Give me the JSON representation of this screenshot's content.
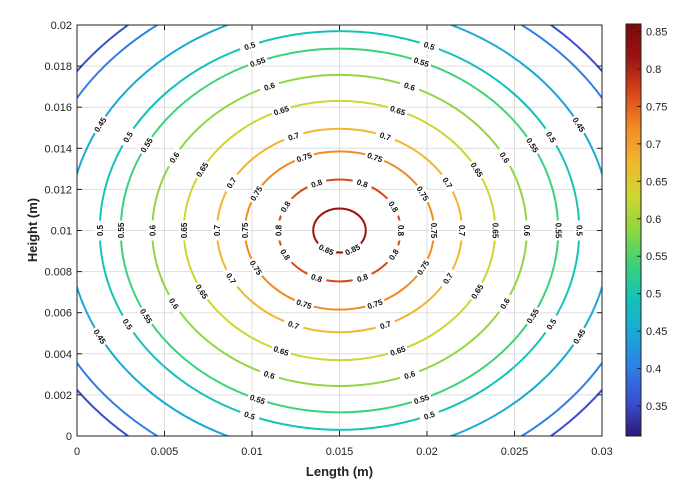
{
  "chart_data": {
    "type": "contour",
    "xlabel": "Length (m)",
    "ylabel": "Height (m)",
    "xlim": [
      0,
      0.03
    ],
    "ylim": [
      0,
      0.02
    ],
    "x_ticks": [
      "0",
      "0.005",
      "0.01",
      "0.015",
      "0.02",
      "0.025",
      "0.03"
    ],
    "y_ticks": [
      "0",
      "0.002",
      "0.004",
      "0.006",
      "0.008",
      "0.01",
      "0.012",
      "0.014",
      "0.016",
      "0.018",
      "0.02"
    ],
    "grid": true,
    "center": {
      "x": 0.015,
      "y": 0.01
    },
    "levels": [
      {
        "value": 0.35,
        "label": "0.35",
        "color": "#3a4fd0",
        "rx": 0.01855,
        "ry": 0.01318
      },
      {
        "value": 0.4,
        "label": "0.4",
        "color": "#2d7fe8",
        "rx": 0.01755,
        "ry": 0.01242
      },
      {
        "value": 0.45,
        "label": "0.45",
        "color": "#1aa9d6",
        "rx": 0.0155,
        "ry": 0.01098
      },
      {
        "value": 0.5,
        "label": "0.5",
        "color": "#14c2b8",
        "rx": 0.0137,
        "ry": 0.0097
      },
      {
        "value": 0.55,
        "label": "0.55",
        "color": "#3cd27a",
        "rx": 0.0125,
        "ry": 0.00885
      },
      {
        "value": 0.6,
        "label": "0.6",
        "color": "#8fd640",
        "rx": 0.0107,
        "ry": 0.00757
      },
      {
        "value": 0.65,
        "label": "0.65",
        "color": "#cfd630",
        "rx": 0.0089,
        "ry": 0.00631
      },
      {
        "value": 0.7,
        "label": "0.7",
        "color": "#f0b630",
        "rx": 0.007,
        "ry": 0.00495
      },
      {
        "value": 0.75,
        "label": "0.75",
        "color": "#f28a22",
        "rx": 0.0054,
        "ry": 0.00385
      },
      {
        "value": 0.8,
        "label": "0.8",
        "color": "#d9481a",
        "rx": 0.0035,
        "ry": 0.00248
      },
      {
        "value": 0.85,
        "label": "0.85",
        "color": "#9b1410",
        "rx": 0.0015,
        "ry": 0.00107
      }
    ],
    "colorbar": {
      "min": 0.31,
      "max": 0.86,
      "ticks": [
        "0.35",
        "0.4",
        "0.45",
        "0.5",
        "0.55",
        "0.6",
        "0.65",
        "0.7",
        "0.75",
        "0.8",
        "0.85"
      ],
      "colors": [
        "#2c1a7a",
        "#3a4fd0",
        "#2d7fe8",
        "#1aa9d6",
        "#14c2b8",
        "#3cd27a",
        "#8fd640",
        "#cfd630",
        "#f0b630",
        "#f28a22",
        "#d9481a",
        "#9b1410",
        "#7a0a0a"
      ]
    }
  }
}
